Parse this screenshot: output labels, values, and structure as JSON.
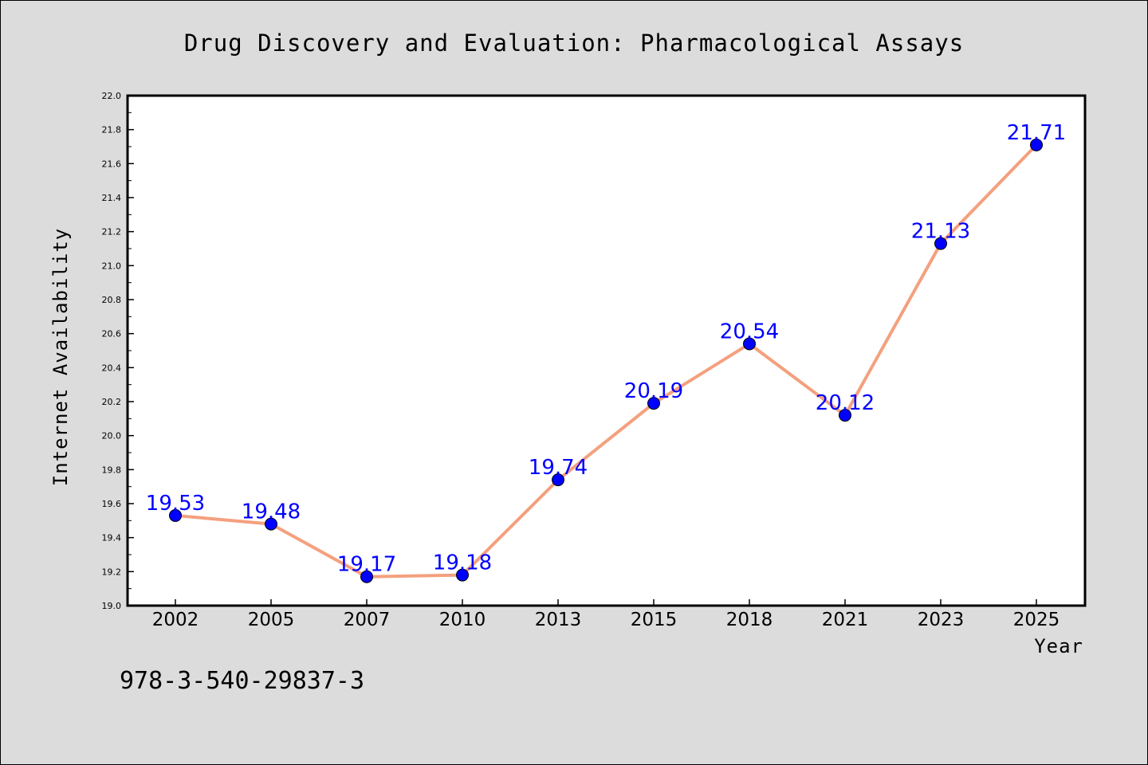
{
  "chart_data": {
    "type": "line",
    "title": "Drug Discovery and Evaluation: Pharmacological Assays",
    "xlabel": "Year",
    "ylabel": "Internet Availability",
    "categories": [
      "2002",
      "2005",
      "2007",
      "2010",
      "2013",
      "2015",
      "2018",
      "2021",
      "2023",
      "2025"
    ],
    "values": [
      19.53,
      19.48,
      19.17,
      19.18,
      19.74,
      20.19,
      20.54,
      20.12,
      21.13,
      21.71
    ],
    "data_labels": [
      "19.53",
      "19.48",
      "19.17",
      "19.18",
      "19.74",
      "20.19",
      "20.54",
      "20.12",
      "21.13",
      "21.71"
    ],
    "ylim": [
      19.0,
      22.0
    ],
    "yticks": [
      "19.0",
      "19.2",
      "19.4",
      "19.6",
      "19.8",
      "20.0",
      "20.2",
      "20.4",
      "20.6",
      "20.8",
      "21.0",
      "21.2",
      "21.4",
      "21.6",
      "21.8",
      "22.0"
    ],
    "grid": false,
    "legend": "none",
    "line_color": "#f4a07e",
    "marker_color": "#0000ff",
    "label_color": "#0000ff"
  },
  "footer": {
    "isbn": "978-3-540-29837-3"
  }
}
